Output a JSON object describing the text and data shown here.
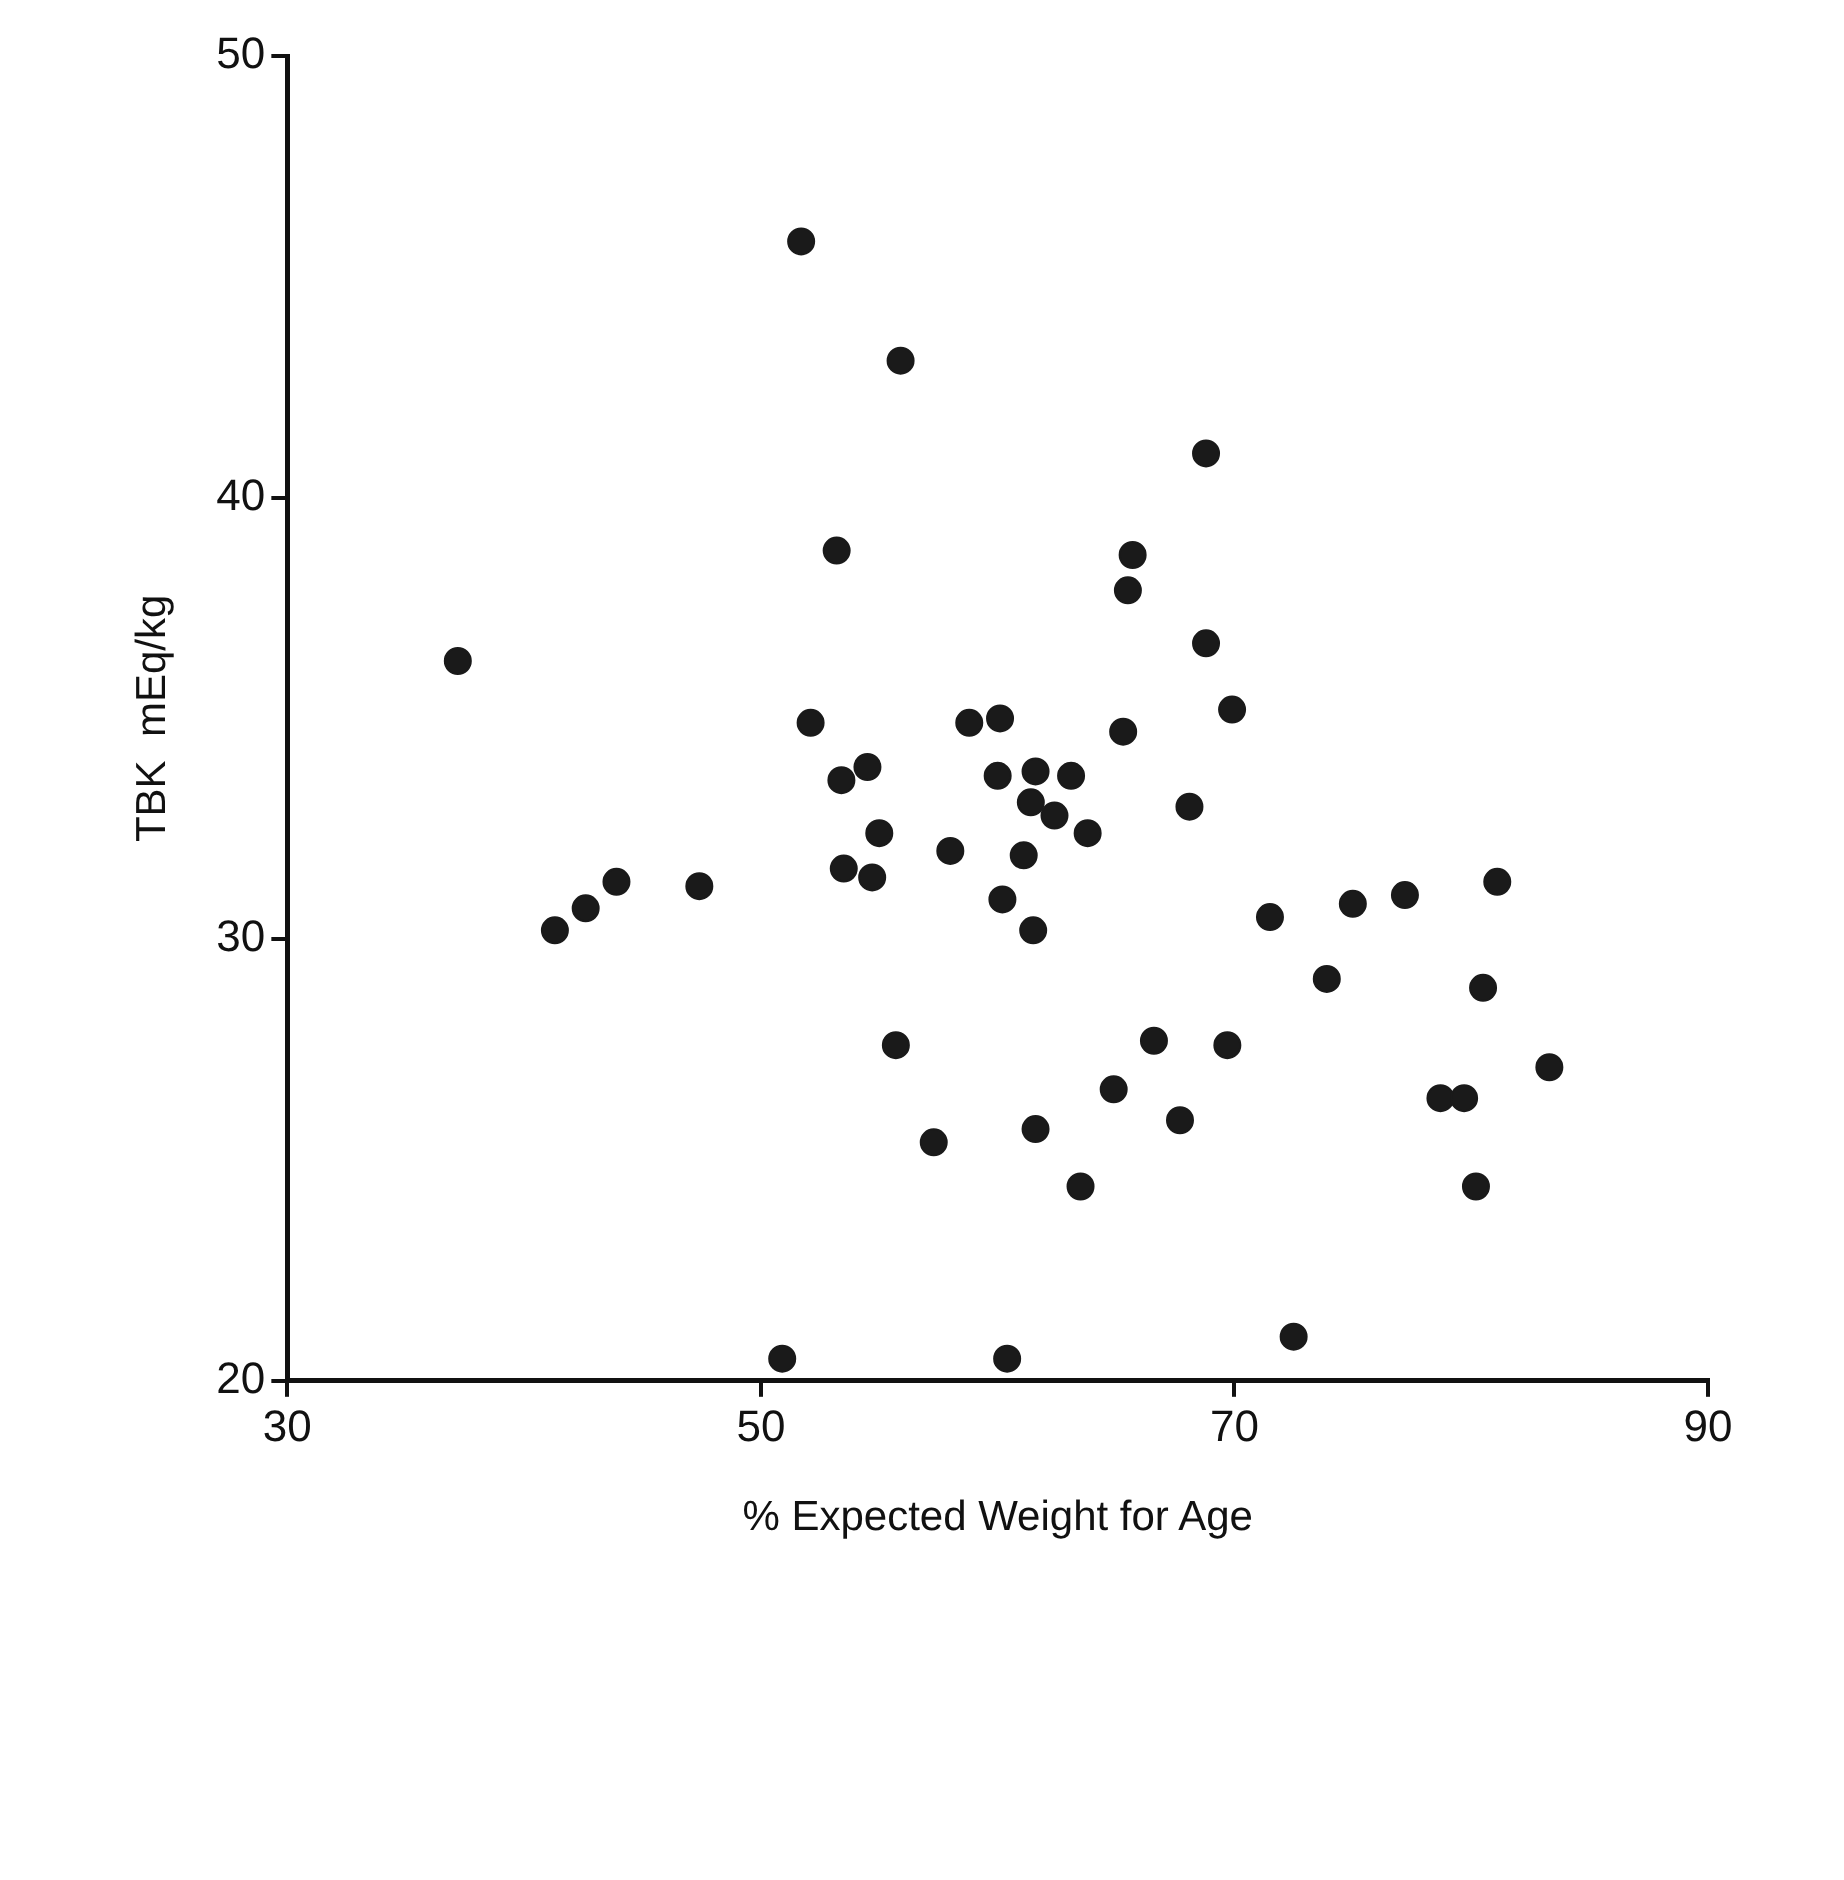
{
  "chart_data": {
    "type": "scatter",
    "xlabel": "% Expected Weight for Age",
    "ylabel": "TBK  mEq/kg",
    "xlim": [
      30,
      90
    ],
    "xticks": [
      30,
      50,
      70,
      90
    ],
    "ylim": [
      20,
      50
    ],
    "yticks": [
      20,
      30,
      40,
      50
    ],
    "grid": false,
    "marker": "circle",
    "series": [
      {
        "color": "#1a1a1a",
        "x": [
          37.2,
          41.3,
          42.6,
          43.9,
          47.4,
          50.9,
          51.7,
          52.1,
          53.2,
          53.4,
          53.5,
          54.5,
          54.7,
          55.0,
          55.7,
          55.9,
          57.3,
          58.0,
          58.8,
          60.1,
          60.0,
          60.2,
          60.4,
          61.1,
          61.4,
          61.5,
          61.6,
          61.6,
          62.4,
          63.1,
          63.5,
          63.8,
          64.9,
          65.3,
          65.5,
          65.7,
          67.7,
          68.1,
          68.8,
          68.8,
          66.6,
          69.7,
          69.9,
          71.5,
          72.5,
          73.9,
          75.0,
          77.2,
          78.7,
          79.7,
          80.2,
          80.5,
          81.1,
          83.3
        ],
        "values": [
          36.3,
          30.2,
          30.7,
          31.3,
          31.2,
          20.5,
          45.8,
          34.9,
          38.8,
          33.6,
          31.6,
          33.9,
          31.4,
          32.4,
          27.6,
          43.1,
          25.4,
          32.0,
          34.9,
          35.0,
          33.7,
          30.9,
          20.5,
          31.9,
          33.1,
          30.2,
          33.8,
          25.7,
          32.8,
          33.7,
          24.4,
          32.4,
          26.6,
          34.7,
          37.9,
          38.7,
          25.9,
          33.0,
          41.0,
          36.7,
          27.7,
          27.6,
          35.2,
          30.5,
          21.0,
          29.1,
          30.8,
          31.0,
          26.4,
          26.4,
          24.4,
          28.9,
          31.3,
          27.1
        ]
      }
    ]
  }
}
